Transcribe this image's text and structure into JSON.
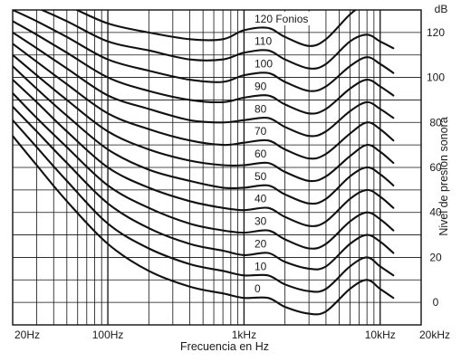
{
  "chart_data": {
    "type": "line",
    "xlabel": "Frecuencia en Hz",
    "ylabel": "Nivel de presión sonora",
    "yunit": "dB",
    "x_scale": "log",
    "xlim": [
      20,
      20000
    ],
    "ylim": [
      -10,
      130
    ],
    "x_ticks": [
      {
        "value": 20,
        "label": "20Hz"
      },
      {
        "value": 100,
        "label": "100Hz"
      },
      {
        "value": 1000,
        "label": "1kHz"
      },
      {
        "value": 10000,
        "label": "10kHz"
      },
      {
        "value": 20000,
        "label": "20kHz"
      }
    ],
    "y_ticks": [
      {
        "value": 0,
        "label": "0"
      },
      {
        "value": 20,
        "label": "20"
      },
      {
        "value": 40,
        "label": "40"
      },
      {
        "value": 60,
        "label": "60"
      },
      {
        "value": 80,
        "label": "80"
      },
      {
        "value": 100,
        "label": "100"
      },
      {
        "value": 120,
        "label": "120"
      }
    ],
    "grid": true,
    "x": [
      20,
      30,
      50,
      100,
      200,
      400,
      700,
      1000,
      1500,
      2000,
      3000,
      4000,
      6000,
      8000,
      10000,
      12500
    ],
    "series": [
      {
        "name": "0",
        "label": "0",
        "values": [
          74,
          61,
          45,
          26,
          14,
          7,
          4,
          2,
          2,
          -2,
          -5,
          -4,
          6,
          10,
          6,
          2
        ]
      },
      {
        "name": "10",
        "label": "10",
        "values": [
          81,
          69,
          54,
          35,
          24,
          17,
          14,
          12,
          12,
          8,
          5,
          6,
          16,
          20,
          16,
          12
        ]
      },
      {
        "name": "20",
        "label": "20",
        "values": [
          87,
          76,
          62,
          44,
          33,
          26,
          23,
          21,
          22,
          18,
          15,
          16,
          26,
          30,
          27,
          22
        ]
      },
      {
        "name": "30",
        "label": "30",
        "values": [
          93,
          82,
          69,
          52,
          42,
          35,
          32,
          31,
          32,
          28,
          24,
          26,
          36,
          40,
          37,
          32
        ]
      },
      {
        "name": "40",
        "label": "40",
        "values": [
          99,
          89,
          76,
          60,
          51,
          45,
          42,
          41,
          42,
          38,
          34,
          36,
          46,
          50,
          47,
          42
        ]
      },
      {
        "name": "50",
        "label": "50",
        "values": [
          105,
          95,
          83,
          68,
          59,
          54,
          51,
          51,
          52,
          48,
          44,
          46,
          56,
          60,
          57,
          52
        ]
      },
      {
        "name": "60",
        "label": "60",
        "values": [
          110,
          101,
          90,
          76,
          68,
          63,
          61,
          61,
          62,
          58,
          54,
          56,
          65,
          70,
          67,
          62
        ]
      },
      {
        "name": "70",
        "label": "70",
        "values": [
          115,
          107,
          97,
          84,
          77,
          72,
          70,
          71,
          72,
          68,
          64,
          66,
          75,
          80,
          77,
          72
        ]
      },
      {
        "name": "80",
        "label": "80",
        "values": [
          120,
          113,
          104,
          92,
          86,
          81,
          80,
          81,
          82,
          78,
          74,
          76,
          85,
          89,
          86,
          82
        ]
      },
      {
        "name": "90",
        "label": "90",
        "values": [
          125,
          119,
          111,
          100,
          94,
          90,
          89,
          91,
          92,
          88,
          84,
          86,
          95,
          99,
          96,
          92
        ]
      },
      {
        "name": "100",
        "label": "100",
        "values": [
          130,
          125,
          118,
          108,
          103,
          99,
          98,
          101,
          102,
          98,
          94,
          96,
          105,
          109,
          106,
          102
        ]
      },
      {
        "name": "110",
        "label": "110",
        "values": [
          135,
          131,
          125,
          116,
          112,
          108,
          108,
          111,
          112,
          108,
          104,
          106,
          116,
          119,
          116,
          113
        ]
      },
      {
        "name": "120",
        "label": "120 Fonios",
        "values": [
          140,
          137,
          132,
          124,
          120,
          117,
          117,
          121,
          122,
          118,
          114,
          117,
          128,
          133,
          132,
          135
        ]
      }
    ]
  }
}
